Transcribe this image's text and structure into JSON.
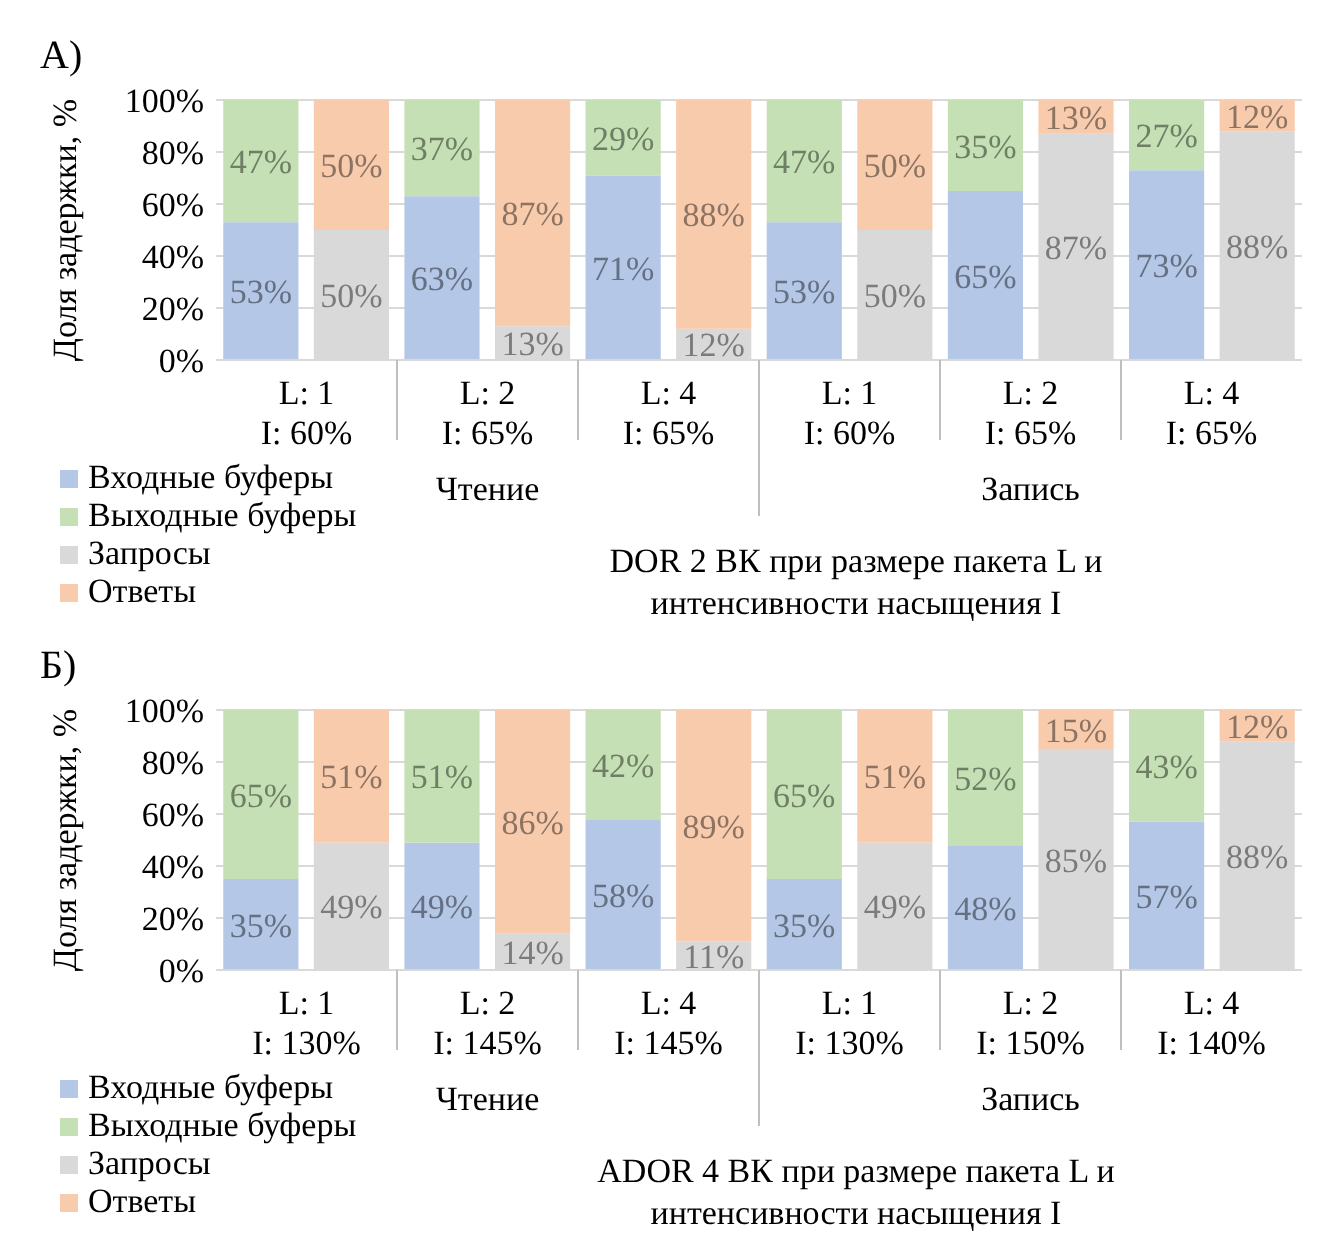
{
  "chart_data": [
    {
      "type": "bar",
      "title": "А)",
      "ylabel": "Доля задержки, %",
      "xlabel": "DOR 2 ВК при размере пакета L и интенсивности насыщения I",
      "stacked": true,
      "categories": [
        "L: 1\nI: 60%",
        null,
        "L: 2\nI: 65%",
        null,
        "L: 4\nI: 65%",
        null,
        "L: 1\nI: 60%",
        null,
        "L: 2\nI: 65%",
        null,
        "L: 4\nI: 65%",
        null
      ],
      "annotations": [
        "Чтение",
        "Запись"
      ],
      "ylim": [
        0,
        100
      ],
      "yticks": [
        {
          "value": 0,
          "label": "0%"
        },
        {
          "value": 20,
          "label": "20%"
        },
        {
          "value": 40,
          "label": "40%"
        },
        {
          "value": 60,
          "label": "60%"
        },
        {
          "value": 80,
          "label": "80%"
        },
        {
          "value": 100,
          "label": "100%"
        }
      ],
      "grid": "y",
      "legend": "bottom left",
      "series": [
        {
          "name": "Входные буферы",
          "color": "#b4c7e7",
          "values": [
            53,
            null,
            63,
            null,
            71,
            null,
            53,
            null,
            65,
            null,
            73,
            null
          ],
          "value_labels": [
            "53%",
            null,
            "63%",
            null,
            "71%",
            null,
            "53%",
            null,
            "65%",
            null,
            "73%",
            null
          ]
        },
        {
          "name": "Выходные буферы",
          "color": "#c5e0b4",
          "values": [
            47,
            null,
            37,
            null,
            29,
            null,
            47,
            null,
            35,
            null,
            27,
            null
          ],
          "value_labels": [
            "47%",
            null,
            "37%",
            null,
            "29%",
            null,
            "47%",
            null,
            "35%",
            null,
            "27%",
            null
          ]
        },
        {
          "name": "Запросы",
          "color": "#d9d9d9",
          "values": [
            null,
            50,
            null,
            13,
            null,
            12,
            null,
            50,
            null,
            87,
            null,
            88
          ],
          "value_labels": [
            null,
            "50%",
            null,
            "13%",
            null,
            "12%",
            null,
            "50%",
            null,
            "87%",
            null,
            "88%"
          ]
        },
        {
          "name": "Ответы",
          "color": "#f8cbad",
          "values": [
            null,
            50,
            null,
            87,
            null,
            88,
            null,
            50,
            null,
            13,
            null,
            12
          ],
          "value_labels": [
            null,
            "50%",
            null,
            "87%",
            null,
            "88%",
            null,
            "50%",
            null,
            "13%",
            null,
            "12%"
          ]
        }
      ]
    },
    {
      "type": "bar",
      "title": "Б)",
      "ylabel": "Доля задержки, %",
      "xlabel": "ADOR 4 ВК при размере пакета L и интенсивности насыщения I",
      "stacked": true,
      "categories": [
        "L: 1\nI: 130%",
        null,
        "L: 2\nI: 145%",
        null,
        "L: 4\nI: 145%",
        null,
        "L: 1\nI: 130%",
        null,
        "L: 2\nI: 150%",
        null,
        "L: 4\nI: 140%",
        null
      ],
      "annotations": [
        "Чтение",
        "Запись"
      ],
      "ylim": [
        0,
        100
      ],
      "yticks": [
        {
          "value": 0,
          "label": "0%"
        },
        {
          "value": 20,
          "label": "20%"
        },
        {
          "value": 40,
          "label": "40%"
        },
        {
          "value": 60,
          "label": "60%"
        },
        {
          "value": 80,
          "label": "80%"
        },
        {
          "value": 100,
          "label": "100%"
        }
      ],
      "grid": "y",
      "legend": "bottom left",
      "series": [
        {
          "name": "Входные буферы",
          "color": "#b4c7e7",
          "values": [
            35,
            null,
            49,
            null,
            58,
            null,
            35,
            null,
            48,
            null,
            57,
            null
          ],
          "value_labels": [
            "35%",
            null,
            "49%",
            null,
            "58%",
            null,
            "35%",
            null,
            "48%",
            null,
            "57%",
            null
          ]
        },
        {
          "name": "Выходные буферы",
          "color": "#c5e0b4",
          "values": [
            65,
            null,
            51,
            null,
            42,
            null,
            65,
            null,
            52,
            null,
            43,
            null
          ],
          "value_labels": [
            "65%",
            null,
            "51%",
            null,
            "42%",
            null,
            "65%",
            null,
            "52%",
            null,
            "43%",
            null
          ]
        },
        {
          "name": "Запросы",
          "color": "#d9d9d9",
          "values": [
            null,
            49,
            null,
            14,
            null,
            11,
            null,
            49,
            null,
            85,
            null,
            88
          ],
          "value_labels": [
            null,
            "49%",
            null,
            "14%",
            null,
            "11%",
            null,
            "49%",
            null,
            "85%",
            null,
            "88%"
          ]
        },
        {
          "name": "Ответы",
          "color": "#f8cbad",
          "values": [
            null,
            51,
            null,
            86,
            null,
            89,
            null,
            51,
            null,
            15,
            null,
            12
          ],
          "value_labels": [
            null,
            "51%",
            null,
            "86%",
            null,
            "89%",
            null,
            "51%",
            null,
            "15%",
            null,
            "12%"
          ]
        }
      ]
    }
  ]
}
